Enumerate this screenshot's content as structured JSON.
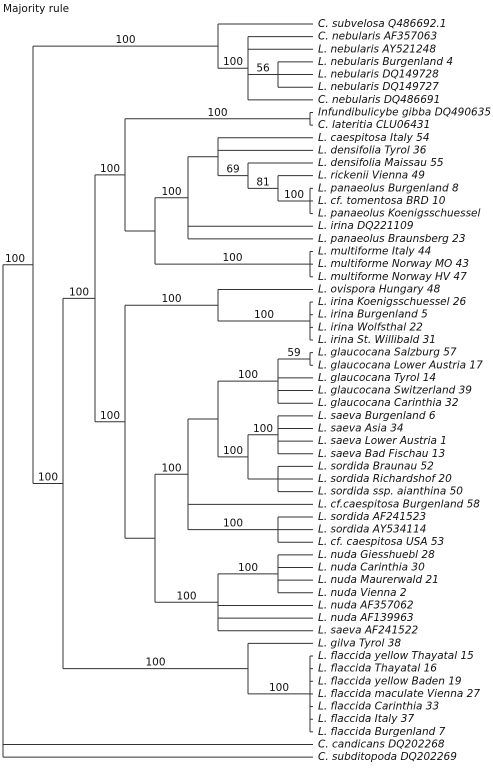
{
  "title": "Majority rule",
  "leaves": [
    "C. subvelosa Q486692.1",
    "C. nebularis AF357063",
    "L. nebularis AY521248",
    "L. nebularis Burgenland 4",
    "L. nebularis DQ149728",
    "L. nebularis DQ149727",
    "C. nebularis DQ486691",
    "Infundibulicybe gibba DQ490635",
    "C. lateritia CLU06431",
    "L. caespitosa Italy 54",
    "L. densifolia Tyrol 36",
    "L. densifolia Maissau 55",
    "L. rickenii Vienna 49",
    "L. panaeolus Burgenland 8",
    "L. cf. tomentosa BRD 10",
    "L. panaeolus Koenigsschuessel",
    "L. irina DQ221109",
    "L. panaeolus Braunsberg 23",
    "L. multiforme Italy 44",
    "L. multiforme Norway MO 43",
    "L. multiforme Norway HV 47",
    "L. ovispora Hungary 48",
    "L. irina Koenigsschuessel 26",
    "L. irina Burgenland 5",
    "L. irina Wolfsthal 22",
    "L. irina St. Willibald 31",
    "L. glaucocana Salzburg 57",
    "L. glaucocana Lower Austria 17",
    "L. glaucocana Tyrol 14",
    "L. glaucocana Switzerland 39",
    "L. glaucocana Carinthia 32",
    "L. saeva Burgenland 6",
    "L. saeva Asia 34",
    "L. saeva Lower Austria 1",
    "L. saeva Bad Fischau 13",
    "L. sordida Braunau 52",
    "L. sordida Richardshof 20",
    "L. sordida ssp. aianthina 50",
    "L. cf.caespitosa Burgenland 58",
    "L. sordida AF241523",
    "L. sordida AY534114",
    "L. cf. caespitosa USA 53",
    "L. nuda Giesshuebl 28",
    "L. nuda Carinthia 30",
    "L. nuda Maurerwald 21",
    "L. nuda Vienna 2",
    "L. nuda AF357062",
    "L. nuda AF139963",
    "L. saeva AF241522",
    "L. gilva Tyrol 38",
    "L. flaccida yellow Thayatal 15",
    "L. flaccida Thayatal 16",
    "L. flaccida yellow Baden 19",
    "L. flaccida maculate Vienna 27",
    "L. flaccida Carinthia 33",
    "L. flaccida Italy 37",
    "L. flaccida Burgenland 7",
    "C. candicans DQ202268",
    "C. subditopoda DQ202269"
  ],
  "supports": [
    100,
    100,
    100,
    56,
    100,
    100,
    100,
    69,
    81,
    100,
    100,
    100,
    100,
    100,
    100,
    100,
    100,
    59,
    100,
    100,
    100,
    100,
    100,
    100,
    100,
    100
  ]
}
